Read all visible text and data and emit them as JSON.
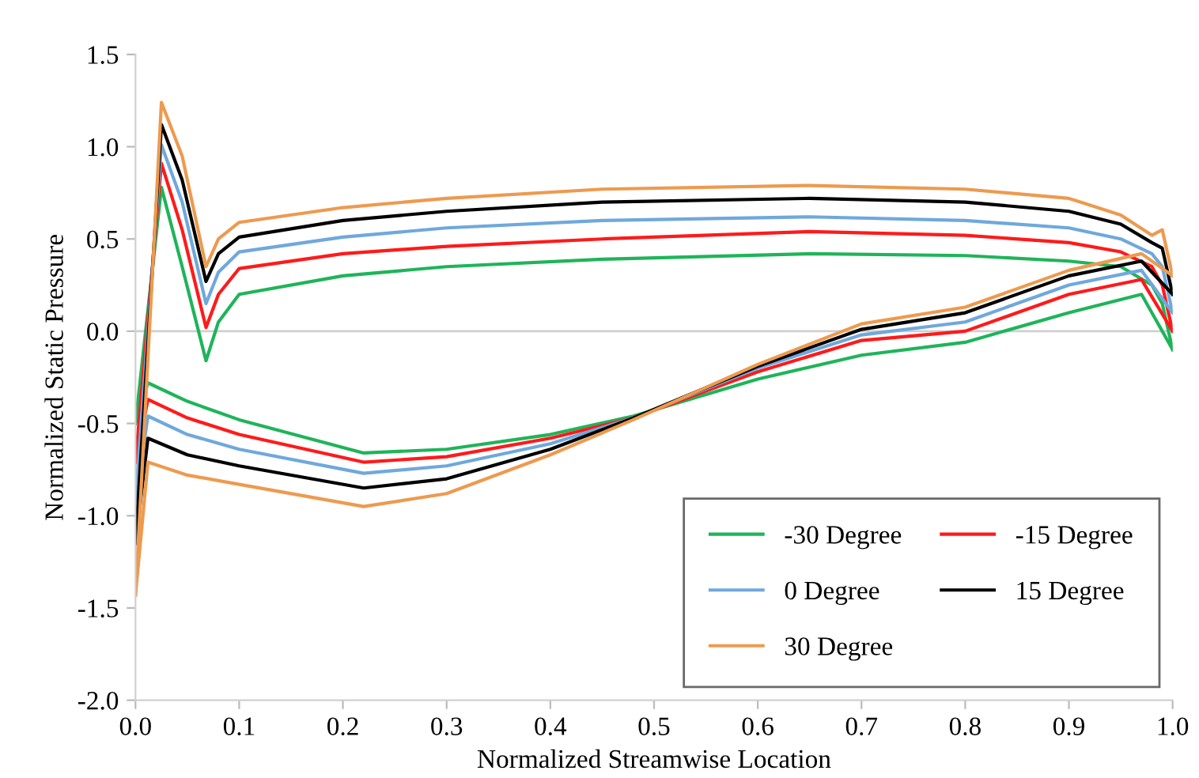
{
  "chart_data": {
    "type": "line",
    "xlabel": "Normalized Streamwise Location",
    "ylabel": "Normalized Static Pressure",
    "series": [
      {
        "name": "-30 Degree",
        "color": "#1fb45a",
        "x": [
          0,
          0.025,
          0.045,
          0.068,
          0.08,
          0.1,
          0.2,
          0.3,
          0.45,
          0.65,
          0.8,
          0.9,
          0.95,
          0.98,
          0.99,
          1.0
        ],
        "values": [
          -0.5,
          0.78,
          0.35,
          -0.16,
          0.05,
          0.2,
          0.3,
          0.35,
          0.39,
          0.42,
          0.41,
          0.38,
          0.35,
          0.25,
          0.15,
          -0.1
        ]
      },
      {
        "color": "#1fb45a",
        "x": [
          0,
          0.012,
          0.05,
          0.1,
          0.22,
          0.3,
          0.4,
          0.48,
          0.6,
          0.7,
          0.8,
          0.9,
          0.97,
          1.0
        ],
        "values": [
          -0.5,
          -0.28,
          -0.38,
          -0.48,
          -0.66,
          -0.64,
          -0.56,
          -0.46,
          -0.26,
          -0.13,
          -0.06,
          0.1,
          0.2,
          -0.1
        ]
      },
      {
        "name": "-15 Degree",
        "color": "#ff1a1a",
        "x": [
          0,
          0.025,
          0.045,
          0.068,
          0.08,
          0.1,
          0.2,
          0.3,
          0.45,
          0.65,
          0.8,
          0.9,
          0.95,
          0.98,
          0.99,
          1.0
        ],
        "values": [
          -0.71,
          0.91,
          0.55,
          0.02,
          0.2,
          0.34,
          0.42,
          0.46,
          0.5,
          0.54,
          0.52,
          0.48,
          0.43,
          0.35,
          0.25,
          0.0
        ]
      },
      {
        "color": "#ff1a1a",
        "x": [
          0,
          0.012,
          0.05,
          0.1,
          0.22,
          0.3,
          0.4,
          0.48,
          0.6,
          0.7,
          0.8,
          0.9,
          0.97,
          1.0
        ],
        "values": [
          -0.71,
          -0.37,
          -0.47,
          -0.56,
          -0.71,
          -0.68,
          -0.58,
          -0.47,
          -0.22,
          -0.05,
          0.0,
          0.2,
          0.28,
          0.0
        ]
      },
      {
        "name": "0 Degree",
        "color": "#6fa8dc",
        "x": [
          0,
          0.025,
          0.045,
          0.068,
          0.08,
          0.1,
          0.2,
          0.3,
          0.45,
          0.65,
          0.8,
          0.9,
          0.95,
          0.98,
          0.99,
          1.0
        ],
        "values": [
          -0.92,
          1.01,
          0.7,
          0.15,
          0.32,
          0.43,
          0.51,
          0.56,
          0.6,
          0.62,
          0.6,
          0.56,
          0.5,
          0.42,
          0.35,
          0.1
        ]
      },
      {
        "color": "#6fa8dc",
        "x": [
          0,
          0.012,
          0.05,
          0.1,
          0.22,
          0.3,
          0.4,
          0.48,
          0.6,
          0.7,
          0.8,
          0.9,
          0.97,
          1.0
        ],
        "values": [
          -0.92,
          -0.46,
          -0.56,
          -0.64,
          -0.77,
          -0.73,
          -0.61,
          -0.47,
          -0.2,
          -0.02,
          0.05,
          0.25,
          0.33,
          0.1
        ]
      },
      {
        "name": "15 Degree",
        "color": "#000000",
        "x": [
          0,
          0.025,
          0.045,
          0.068,
          0.08,
          0.1,
          0.2,
          0.3,
          0.45,
          0.65,
          0.8,
          0.9,
          0.95,
          0.98,
          0.99,
          1.0
        ],
        "values": [
          -1.15,
          1.12,
          0.82,
          0.27,
          0.42,
          0.51,
          0.6,
          0.65,
          0.7,
          0.72,
          0.7,
          0.65,
          0.58,
          0.48,
          0.45,
          0.2
        ]
      },
      {
        "color": "#000000",
        "x": [
          0,
          0.012,
          0.05,
          0.1,
          0.22,
          0.3,
          0.4,
          0.48,
          0.6,
          0.7,
          0.8,
          0.9,
          0.97,
          1.0
        ],
        "values": [
          -1.15,
          -0.58,
          -0.67,
          -0.73,
          -0.85,
          -0.8,
          -0.64,
          -0.47,
          -0.19,
          0.01,
          0.1,
          0.3,
          0.38,
          0.2
        ]
      },
      {
        "name": "30 Degree",
        "color": "#ed9a4f",
        "x": [
          0,
          0.025,
          0.045,
          0.068,
          0.08,
          0.1,
          0.2,
          0.3,
          0.45,
          0.65,
          0.8,
          0.9,
          0.95,
          0.98,
          0.99,
          1.0
        ],
        "values": [
          -1.43,
          1.24,
          0.95,
          0.35,
          0.5,
          0.59,
          0.67,
          0.72,
          0.77,
          0.79,
          0.77,
          0.72,
          0.63,
          0.52,
          0.55,
          0.3
        ]
      },
      {
        "color": "#ed9a4f",
        "x": [
          0,
          0.012,
          0.05,
          0.1,
          0.22,
          0.3,
          0.4,
          0.48,
          0.6,
          0.7,
          0.8,
          0.9,
          0.97,
          1.0
        ],
        "values": [
          -1.43,
          -0.71,
          -0.78,
          -0.83,
          -0.95,
          -0.88,
          -0.67,
          -0.48,
          -0.18,
          0.04,
          0.13,
          0.33,
          0.42,
          0.3
        ]
      }
    ],
    "xlim": [
      0,
      1
    ],
    "xticks": [
      {
        "value": 0,
        "label": "0.0"
      },
      0.1,
      0.2,
      0.3,
      0.4,
      0.5,
      0.6,
      0.7,
      0.8,
      0.9,
      {
        "value": 1,
        "label": "1.0"
      }
    ],
    "ylim": [
      -2,
      1.5
    ],
    "yticks": [
      {
        "value": -2,
        "label": "-2.0"
      },
      -1.5,
      {
        "value": -1,
        "label": "-1.0"
      },
      -0.5,
      {
        "value": 0,
        "label": "0.0"
      },
      0.5,
      {
        "value": 1,
        "label": "1.0"
      },
      1.5
    ],
    "ref_lines": [
      {
        "axis": "y",
        "value": 0,
        "color": "#d0d0d0"
      }
    ],
    "legend": "bottom right",
    "line_style": "solid",
    "marker": "none"
  }
}
